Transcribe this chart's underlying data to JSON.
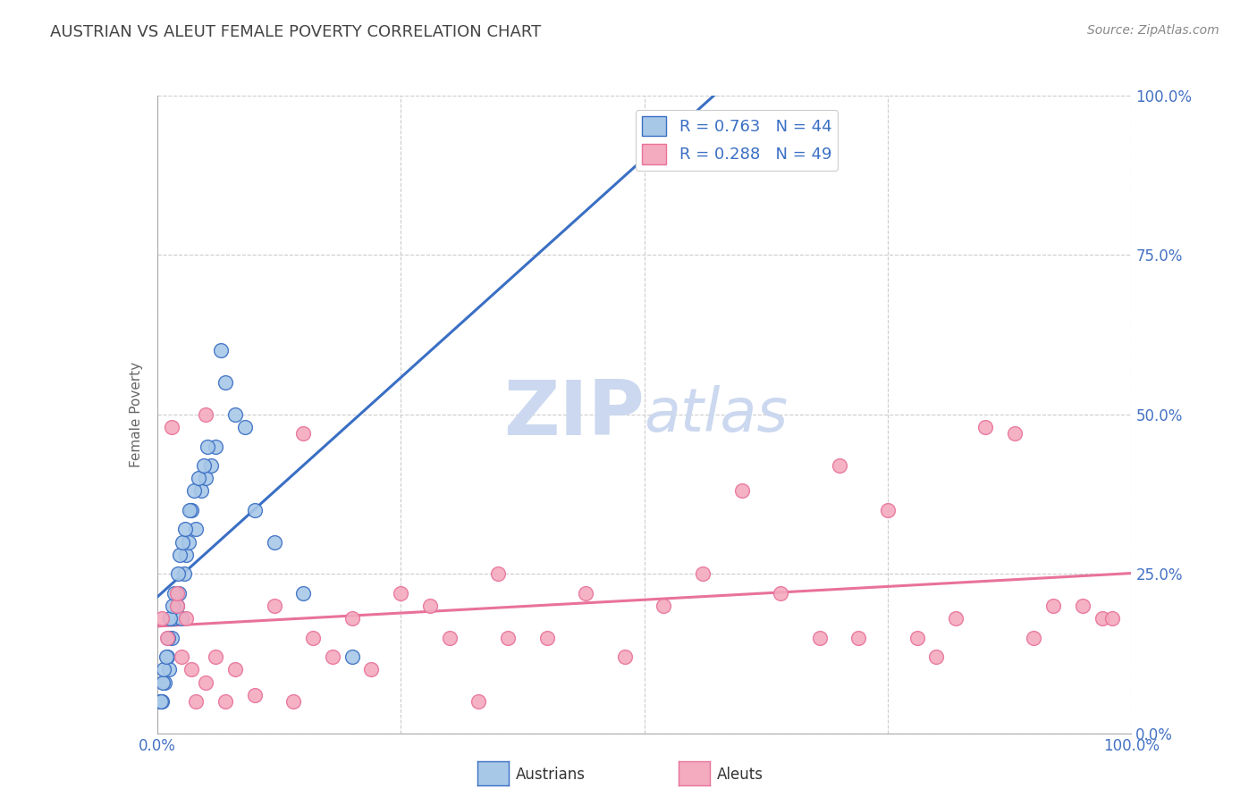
{
  "title": "AUSTRIAN VS ALEUT FEMALE POVERTY CORRELATION CHART",
  "source": "Source: ZipAtlas.com",
  "ylabel": "Female Poverty",
  "ytick_labels": [
    "0.0%",
    "25.0%",
    "50.0%",
    "75.0%",
    "100.0%"
  ],
  "ytick_values": [
    0,
    25,
    50,
    75,
    100
  ],
  "R_austrians": 0.763,
  "N_austrians": 44,
  "R_aleuts": 0.288,
  "N_aleuts": 49,
  "color_austrians": "#A8C8E8",
  "color_aleuts": "#F4AABF",
  "line_color_austrians": "#3A6FC4",
  "line_color_aleuts": "#E8729A",
  "background_color": "#FFFFFF",
  "grid_color": "#CCCCCC",
  "title_color": "#444444",
  "axis_label_color": "#4472C4",
  "watermark_color": "#CBD8EF",
  "aust_x": [
    0.5,
    0.8,
    1.0,
    1.2,
    1.5,
    1.7,
    2.0,
    2.2,
    2.5,
    2.8,
    3.0,
    3.2,
    3.5,
    4.0,
    4.5,
    5.0,
    5.5,
    6.0,
    7.0,
    8.0,
    0.3,
    0.4,
    0.6,
    0.7,
    0.9,
    1.1,
    1.3,
    1.6,
    1.8,
    2.1,
    2.3,
    2.6,
    2.9,
    3.3,
    3.8,
    4.2,
    4.8,
    5.2,
    6.5,
    9.0,
    10.0,
    12.0,
    15.0,
    20.0
  ],
  "aust_y": [
    5,
    8,
    12,
    10,
    15,
    18,
    20,
    22,
    18,
    25,
    28,
    30,
    35,
    32,
    38,
    40,
    42,
    45,
    55,
    50,
    5,
    5,
    8,
    10,
    12,
    15,
    18,
    20,
    22,
    25,
    28,
    30,
    32,
    35,
    38,
    40,
    42,
    45,
    60,
    48,
    35,
    30,
    22,
    12
  ],
  "aleu_x": [
    0.5,
    1.0,
    1.5,
    2.0,
    2.5,
    3.0,
    3.5,
    4.0,
    5.0,
    6.0,
    7.0,
    8.0,
    10.0,
    12.0,
    14.0,
    16.0,
    18.0,
    20.0,
    22.0,
    25.0,
    28.0,
    30.0,
    33.0,
    36.0,
    40.0,
    44.0,
    48.0,
    52.0,
    56.0,
    60.0,
    64.0,
    68.0,
    70.0,
    72.0,
    75.0,
    78.0,
    80.0,
    82.0,
    85.0,
    88.0,
    90.0,
    92.0,
    95.0,
    97.0,
    98.0,
    2.0,
    5.0,
    15.0,
    35.0
  ],
  "aleu_y": [
    18,
    15,
    48,
    20,
    12,
    18,
    10,
    5,
    8,
    12,
    5,
    10,
    6,
    20,
    5,
    15,
    12,
    18,
    10,
    22,
    20,
    15,
    5,
    15,
    15,
    22,
    12,
    20,
    25,
    38,
    22,
    15,
    42,
    15,
    35,
    15,
    12,
    18,
    48,
    47,
    15,
    20,
    20,
    18,
    18,
    22,
    50,
    47,
    25
  ]
}
